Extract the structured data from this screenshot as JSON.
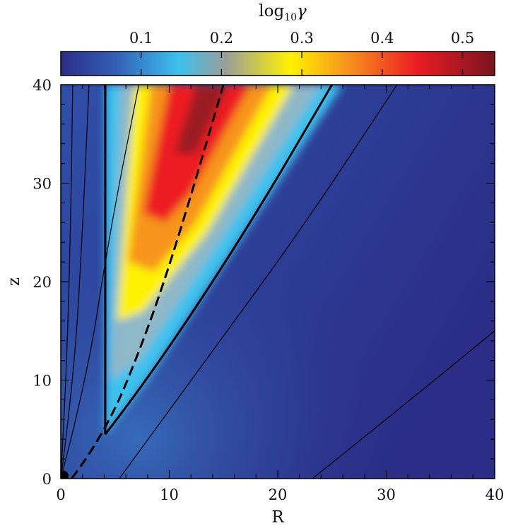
{
  "chart_data": {
    "type": "heatmap",
    "title": "",
    "xlabel": "R",
    "ylabel": "z",
    "xlim": [
      0,
      40
    ],
    "ylim": [
      0,
      40
    ],
    "xticks": [
      "0",
      "10",
      "20",
      "30",
      "40"
    ],
    "yticks": [
      "0",
      "10",
      "20",
      "30",
      "40"
    ],
    "grid": false,
    "colorbar": {
      "label_base": "log",
      "label_sub": "10",
      "label_var": "γ",
      "range": [
        0.0,
        0.54
      ],
      "ticks": [
        "0.1",
        "0.2",
        "0.3",
        "0.4",
        "0.5"
      ],
      "tick_values": [
        0.1,
        0.2,
        0.3,
        0.4,
        0.5
      ],
      "colors": [
        "#2b2d86",
        "#3460b8",
        "#3cc1ee",
        "#9a9e9a",
        "#fff200",
        "#f7941d",
        "#ec1c24",
        "#7a1420"
      ],
      "color_stops": [
        0,
        0.13,
        0.27,
        0.38,
        0.53,
        0.66,
        0.82,
        1
      ]
    },
    "field_lines": [
      {
        "name": "thin",
        "points": [
          [
            0,
            0
          ],
          [
            0.5,
            10
          ],
          [
            0.9,
            25
          ],
          [
            1.1,
            40
          ]
        ]
      },
      {
        "name": "thin",
        "points": [
          [
            0,
            0
          ],
          [
            1.2,
            10
          ],
          [
            2.0,
            25
          ],
          [
            2.6,
            40
          ]
        ]
      },
      {
        "name": "thin",
        "points": [
          [
            0,
            0
          ],
          [
            2.4,
            10
          ],
          [
            4.5,
            25
          ],
          [
            7.2,
            40
          ]
        ]
      },
      {
        "name": "thin",
        "points": [
          [
            5.4,
            0
          ],
          [
            12,
            10
          ],
          [
            22,
            25
          ],
          [
            31,
            40
          ]
        ]
      },
      {
        "name": "thin",
        "points": [
          [
            23.2,
            0
          ],
          [
            30,
            6
          ],
          [
            40,
            15
          ]
        ]
      }
    ],
    "boundaries": [
      {
        "style": "solid-thick",
        "points": [
          [
            4.1,
            40
          ],
          [
            4.1,
            4.5
          ]
        ]
      },
      {
        "style": "solid-thick",
        "points": [
          [
            4.1,
            4.5
          ],
          [
            8,
            10
          ],
          [
            17,
            25
          ],
          [
            25,
            40
          ]
        ]
      },
      {
        "style": "dashed-thick",
        "points": [
          [
            1.0,
            0
          ],
          [
            4.1,
            4.5
          ],
          [
            8,
            15
          ],
          [
            11,
            25
          ],
          [
            15,
            40
          ]
        ]
      }
    ],
    "values_description": "log10 gamma is near 0.02 outside the wedge between R=4 and the thick solid line; within it, it rises from cyan near the boundaries to about 0.54 (dark red) along the dashed line near R=14, z=40."
  }
}
